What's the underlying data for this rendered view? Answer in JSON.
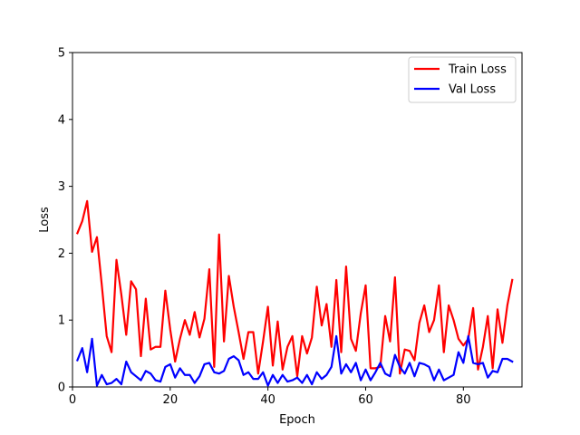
{
  "chart_data": {
    "type": "line",
    "title": "",
    "xlabel": "Epoch",
    "ylabel": "Loss",
    "xlim": [
      0,
      92
    ],
    "ylim": [
      0,
      5
    ],
    "xticks": [
      0,
      20,
      40,
      60,
      80
    ],
    "yticks": [
      0,
      1,
      2,
      3,
      4,
      5
    ],
    "grid": false,
    "legend_position": "top-right",
    "series": [
      {
        "name": "Train Loss",
        "color": "#ff0000",
        "x": [
          1,
          2,
          3,
          4,
          5,
          6,
          7,
          8,
          9,
          10,
          11,
          12,
          13,
          14,
          15,
          16,
          17,
          18,
          19,
          20,
          21,
          22,
          23,
          24,
          25,
          26,
          27,
          28,
          29,
          30,
          31,
          32,
          33,
          34,
          35,
          36,
          37,
          38,
          39,
          40,
          41,
          42,
          43,
          44,
          45,
          46,
          47,
          48,
          49,
          50,
          51,
          52,
          53,
          54,
          55,
          56,
          57,
          58,
          59,
          60,
          61,
          62,
          63,
          64,
          65,
          66,
          67,
          68,
          69,
          70,
          71,
          72,
          73,
          74,
          75,
          76,
          77,
          78,
          79,
          80,
          81,
          82,
          83,
          84,
          85,
          86,
          87,
          88,
          89,
          90
        ],
        "values": [
          2.3,
          2.48,
          2.78,
          2.02,
          2.24,
          1.52,
          0.76,
          0.52,
          1.9,
          1.38,
          0.78,
          1.58,
          1.46,
          0.46,
          1.32,
          0.56,
          0.6,
          0.6,
          1.44,
          0.86,
          0.38,
          0.72,
          1.0,
          0.78,
          1.12,
          0.74,
          1.02,
          1.76,
          0.3,
          2.28,
          0.68,
          1.66,
          1.2,
          0.82,
          0.42,
          0.82,
          0.82,
          0.2,
          0.68,
          1.2,
          0.32,
          0.98,
          0.26,
          0.6,
          0.76,
          0.16,
          0.76,
          0.5,
          0.74,
          1.5,
          0.92,
          1.24,
          0.6,
          1.6,
          0.52,
          1.8,
          0.72,
          0.54,
          1.1,
          1.52,
          0.28,
          0.28,
          0.3,
          1.06,
          0.68,
          1.64,
          0.2,
          0.56,
          0.54,
          0.4,
          0.96,
          1.22,
          0.82,
          1.0,
          1.52,
          0.52,
          1.22,
          1.0,
          0.72,
          0.62,
          0.72,
          1.18,
          0.26,
          0.6,
          1.06,
          0.28,
          1.16,
          0.66,
          1.22,
          1.6
        ]
      },
      {
        "name": "Val Loss",
        "color": "#0000ff",
        "x": [
          1,
          2,
          3,
          4,
          5,
          6,
          7,
          8,
          9,
          10,
          11,
          12,
          13,
          14,
          15,
          16,
          17,
          18,
          19,
          20,
          21,
          22,
          23,
          24,
          25,
          26,
          27,
          28,
          29,
          30,
          31,
          32,
          33,
          34,
          35,
          36,
          37,
          38,
          39,
          40,
          41,
          42,
          43,
          44,
          45,
          46,
          47,
          48,
          49,
          50,
          51,
          52,
          53,
          54,
          55,
          56,
          57,
          58,
          59,
          60,
          61,
          62,
          63,
          64,
          65,
          66,
          67,
          68,
          69,
          70,
          71,
          72,
          73,
          74,
          75,
          76,
          77,
          78,
          79,
          80,
          81,
          82,
          83,
          84,
          85,
          86,
          87,
          88,
          89,
          90
        ],
        "values": [
          0.4,
          0.58,
          0.22,
          0.72,
          0.02,
          0.18,
          0.04,
          0.06,
          0.12,
          0.04,
          0.38,
          0.22,
          0.16,
          0.1,
          0.24,
          0.2,
          0.1,
          0.08,
          0.3,
          0.34,
          0.14,
          0.28,
          0.18,
          0.18,
          0.06,
          0.16,
          0.34,
          0.36,
          0.22,
          0.2,
          0.24,
          0.42,
          0.46,
          0.4,
          0.18,
          0.22,
          0.12,
          0.12,
          0.22,
          0.02,
          0.18,
          0.06,
          0.18,
          0.08,
          0.1,
          0.14,
          0.06,
          0.18,
          0.04,
          0.22,
          0.12,
          0.18,
          0.3,
          0.76,
          0.2,
          0.34,
          0.22,
          0.36,
          0.1,
          0.26,
          0.1,
          0.22,
          0.36,
          0.2,
          0.16,
          0.48,
          0.3,
          0.2,
          0.36,
          0.16,
          0.36,
          0.34,
          0.3,
          0.1,
          0.26,
          0.1,
          0.14,
          0.18,
          0.52,
          0.36,
          0.76,
          0.36,
          0.34,
          0.36,
          0.14,
          0.24,
          0.22,
          0.42,
          0.42,
          0.38
        ]
      }
    ]
  }
}
